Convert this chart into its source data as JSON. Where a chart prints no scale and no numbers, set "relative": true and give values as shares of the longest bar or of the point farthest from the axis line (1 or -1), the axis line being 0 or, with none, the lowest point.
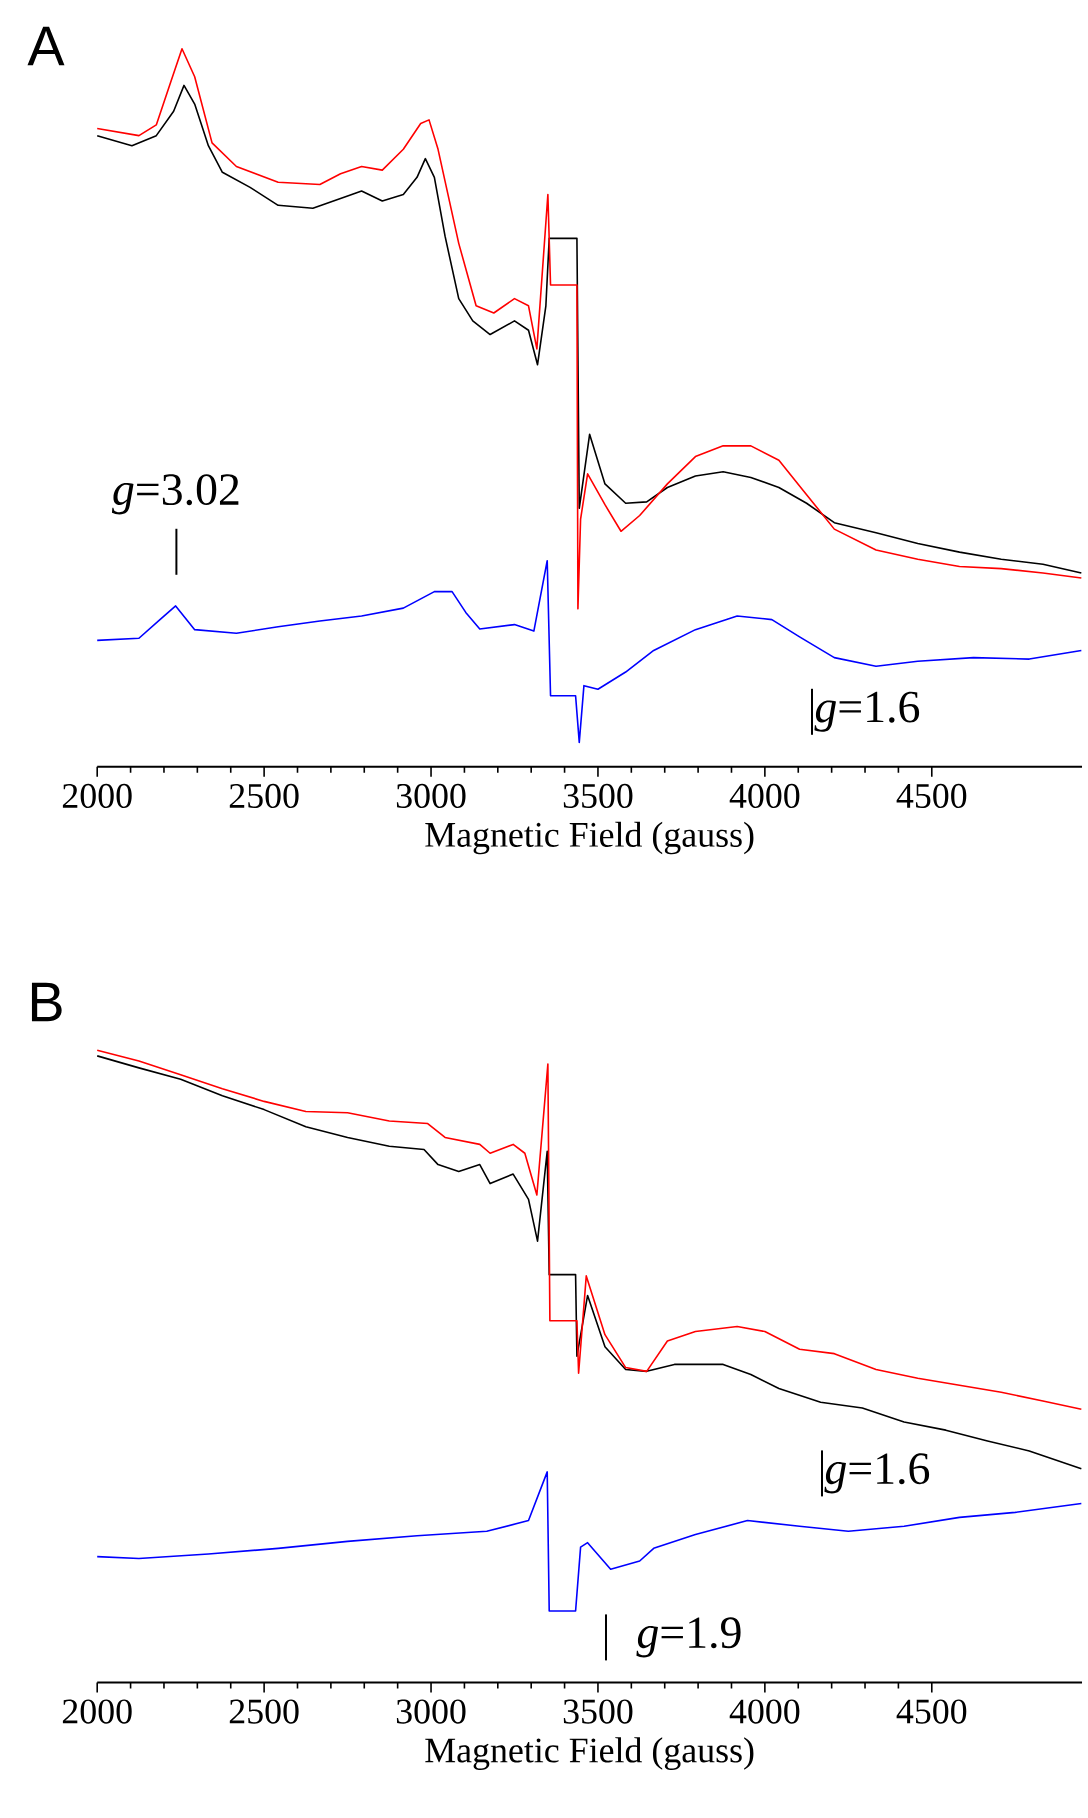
{
  "chart_data": [
    {
      "type": "line",
      "title": "A",
      "xlabel": "Magnetic Field (gauss)",
      "relative": true,
      "tick_labels": "x",
      "xlim": [
        2000,
        4950
      ],
      "xticks": [
        2000,
        2500,
        3000,
        3500,
        4000,
        4500
      ],
      "series": [
        {
          "color": "#000000",
          "x": [
            2000,
            2104,
            2177,
            2229,
            2260,
            2292,
            2333,
            2375,
            2458,
            2542,
            2646,
            2750,
            2792,
            2854,
            2917,
            2958,
            2983,
            3010,
            3042,
            3083,
            3125,
            3177,
            3250,
            3292,
            3319,
            3344,
            3354,
            3437,
            3444,
            3475,
            3521,
            3583,
            3646,
            3708,
            3792,
            3875,
            3958,
            4042,
            4125,
            4208,
            4333,
            4458,
            4583,
            4708,
            4833,
            4948
          ],
          "values": [
            0.879,
            0.865,
            0.879,
            0.913,
            0.949,
            0.923,
            0.865,
            0.828,
            0.807,
            0.782,
            0.778,
            0.795,
            0.802,
            0.788,
            0.797,
            0.821,
            0.847,
            0.821,
            0.739,
            0.652,
            0.621,
            0.602,
            0.621,
            0.608,
            0.56,
            0.642,
            0.736,
            0.736,
            0.36,
            0.463,
            0.394,
            0.367,
            0.369,
            0.389,
            0.405,
            0.411,
            0.403,
            0.389,
            0.367,
            0.34,
            0.326,
            0.311,
            0.299,
            0.289,
            0.282,
            0.27
          ]
        },
        {
          "color": "#ff0000",
          "x": [
            2000,
            2125,
            2177,
            2219,
            2254,
            2292,
            2344,
            2417,
            2542,
            2667,
            2729,
            2792,
            2854,
            2917,
            2969,
            2994,
            3021,
            3083,
            3135,
            3188,
            3250,
            3292,
            3317,
            3350,
            3358,
            3437,
            3440,
            3448,
            3469,
            3521,
            3569,
            3625,
            3708,
            3792,
            3875,
            3958,
            4042,
            4125,
            4208,
            4333,
            4458,
            4583,
            4708,
            4833,
            4948
          ],
          "values": [
            0.889,
            0.879,
            0.894,
            0.952,
            1.0,
            0.961,
            0.869,
            0.836,
            0.814,
            0.811,
            0.826,
            0.836,
            0.831,
            0.86,
            0.896,
            0.901,
            0.86,
            0.729,
            0.642,
            0.632,
            0.652,
            0.642,
            0.582,
            0.797,
            0.671,
            0.671,
            0.22,
            0.345,
            0.408,
            0.365,
            0.328,
            0.35,
            0.394,
            0.432,
            0.447,
            0.447,
            0.427,
            0.379,
            0.331,
            0.302,
            0.289,
            0.279,
            0.276,
            0.27,
            0.263
          ]
        },
        {
          "color": "#0000ff",
          "x": [
            2000,
            2125,
            2188,
            2235,
            2292,
            2417,
            2542,
            2667,
            2792,
            2917,
            3010,
            3063,
            3104,
            3146,
            3250,
            3308,
            3348,
            3358,
            3433,
            3444,
            3458,
            3500,
            3583,
            3667,
            3792,
            3917,
            4021,
            4104,
            4208,
            4333,
            4458,
            4625,
            4792,
            4948
          ],
          "values": [
            0.176,
            0.179,
            0.205,
            0.224,
            0.191,
            0.186,
            0.195,
            0.203,
            0.21,
            0.221,
            0.244,
            0.244,
            0.215,
            0.192,
            0.198,
            0.189,
            0.287,
            0.099,
            0.099,
            0.034,
            0.113,
            0.108,
            0.132,
            0.162,
            0.191,
            0.21,
            0.205,
            0.181,
            0.152,
            0.14,
            0.147,
            0.152,
            0.15,
            0.162
          ]
        }
      ],
      "annotations": [
        "*g*=3.02",
        "*g*=1.6"
      ]
    },
    {
      "type": "line",
      "title": "B",
      "xlabel": "Magnetic Field (gauss)",
      "relative": true,
      "tick_labels": "x",
      "xlim": [
        2000,
        4950
      ],
      "xticks": [
        2000,
        2500,
        3000,
        3500,
        4000,
        4500
      ],
      "series": [
        {
          "color": "#000000",
          "x": [
            2000,
            2125,
            2250,
            2375,
            2500,
            2625,
            2750,
            2875,
            2979,
            3021,
            3083,
            3146,
            3177,
            3246,
            3292,
            3319,
            3348,
            3354,
            3433,
            3437,
            3469,
            3521,
            3583,
            3646,
            3729,
            3813,
            3875,
            3958,
            4042,
            4167,
            4292,
            4417,
            4542,
            4667,
            4792,
            4948
          ],
          "values": [
            0.991,
            0.972,
            0.954,
            0.928,
            0.906,
            0.879,
            0.862,
            0.848,
            0.843,
            0.819,
            0.808,
            0.819,
            0.789,
            0.804,
            0.764,
            0.698,
            0.84,
            0.645,
            0.645,
            0.516,
            0.612,
            0.531,
            0.495,
            0.492,
            0.503,
            0.503,
            0.503,
            0.487,
            0.465,
            0.443,
            0.434,
            0.412,
            0.399,
            0.382,
            0.366,
            0.338
          ]
        },
        {
          "color": "#ff0000",
          "x": [
            2000,
            2125,
            2250,
            2375,
            2500,
            2625,
            2750,
            2875,
            2990,
            3042,
            3146,
            3177,
            3246,
            3281,
            3317,
            3350,
            3356,
            3437,
            3442,
            3465,
            3521,
            3583,
            3646,
            3708,
            3792,
            3917,
            4000,
            4104,
            4208,
            4333,
            4458,
            4583,
            4708,
            4833,
            4948
          ],
          "values": [
            1.0,
            0.983,
            0.961,
            0.939,
            0.919,
            0.903,
            0.901,
            0.888,
            0.884,
            0.862,
            0.851,
            0.837,
            0.851,
            0.837,
            0.771,
            0.978,
            0.572,
            0.572,
            0.489,
            0.643,
            0.55,
            0.498,
            0.492,
            0.54,
            0.555,
            0.563,
            0.555,
            0.527,
            0.52,
            0.495,
            0.481,
            0.47,
            0.459,
            0.445,
            0.432
          ]
        },
        {
          "color": "#0000ff",
          "x": [
            2000,
            2125,
            2333,
            2542,
            2750,
            2958,
            3167,
            3292,
            3348,
            3354,
            3433,
            3448,
            3469,
            3538,
            3625,
            3667,
            3792,
            3948,
            4104,
            4250,
            4417,
            4583,
            4750,
            4948
          ],
          "values": [
            0.199,
            0.196,
            0.203,
            0.212,
            0.223,
            0.232,
            0.239,
            0.256,
            0.333,
            0.113,
            0.113,
            0.214,
            0.221,
            0.179,
            0.192,
            0.212,
            0.234,
            0.256,
            0.247,
            0.239,
            0.247,
            0.261,
            0.269,
            0.283
          ]
        }
      ],
      "annotations": [
        "*g*=1.6",
        "*g*=1.9"
      ]
    }
  ]
}
